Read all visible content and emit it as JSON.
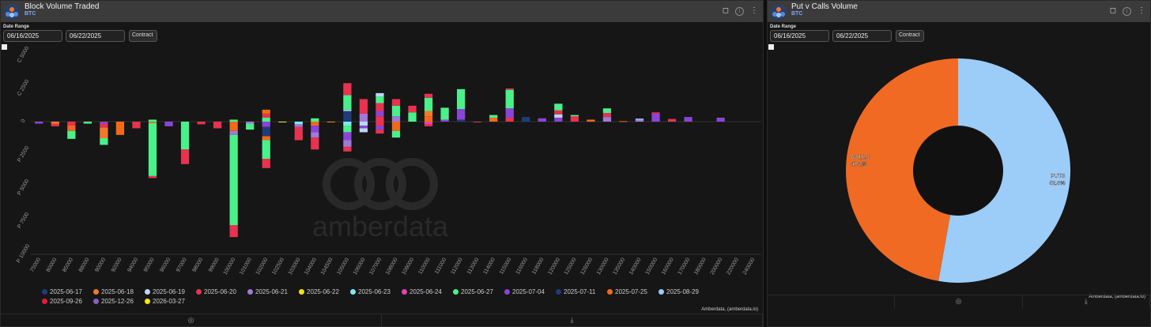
{
  "left_panel": {
    "title": "Block Volume Traded",
    "subtitle": "BTC",
    "date_range_label": "Date Range",
    "date_from": "06/16/2025",
    "date_to": "06/22/2025",
    "contract_button": "Contract",
    "credit": "Amberdata, (amberdata.io)",
    "watermark": "amberdata"
  },
  "right_panel": {
    "title": "Put v Calls Volume",
    "subtitle": "BTC",
    "date_range_label": "Date Range",
    "date_from": "06/16/2025",
    "date_to": "06/22/2025",
    "contract_button": "Contract",
    "credit": "Amberdata, (amberdata.io)"
  },
  "colors": {
    "2025-06-17": "#1f3b7a",
    "2025-06-18": "#f07a2a",
    "2025-06-19": "#bcd6f5",
    "2025-06-20": "#e8324f",
    "2025-06-21": "#a07ad8",
    "2025-06-22": "#f2e01a",
    "2025-06-23": "#7fe8f0",
    "2025-06-24": "#e840b4",
    "2025-06-27": "#4af08a",
    "2025-07-04": "#8a44d6",
    "2025-07-11": "#1f3b7a",
    "2025-07-25": "#f06a1a",
    "2025-08-29": "#9cc9f5",
    "2025-09-26": "#e8193a",
    "2025-12-26": "#8a5cc8",
    "2026-03-27": "#f2ea0a"
  },
  "chart_data": [
    {
      "type": "bar",
      "stacked": true,
      "title": "Block Volume Traded",
      "categories": [
        "75000",
        "80000",
        "85000",
        "88000",
        "90000",
        "92000",
        "94000",
        "95000",
        "96000",
        "97000",
        "98000",
        "99000",
        "100000",
        "101000",
        "102000",
        "102500",
        "103000",
        "104000",
        "104500",
        "105000",
        "106000",
        "107000",
        "108000",
        "109000",
        "110000",
        "111000",
        "112000",
        "113000",
        "114000",
        "115000",
        "116000",
        "118000",
        "120000",
        "125000",
        "126000",
        "130000",
        "135000",
        "140000",
        "150000",
        "160000",
        "170000",
        "180000",
        "200000",
        "220000",
        "240000"
      ],
      "y_tick_labels": [
        "C 5000",
        "C 2500",
        "0",
        "P 2500",
        "P 5000",
        "P 7500",
        "P 10000"
      ],
      "ylim": [
        -10000,
        5000
      ],
      "legend": [
        "2025-06-17",
        "2025-06-18",
        "2025-06-19",
        "2025-06-20",
        "2025-06-21",
        "2025-06-22",
        "2025-06-23",
        "2025-06-24",
        "2025-06-27",
        "2025-07-04",
        "2025-07-11",
        "2025-07-25",
        "2025-08-29",
        "2025-09-26",
        "2025-12-26",
        "2026-03-27"
      ],
      "bars": [
        {
          "cat": "75000",
          "stacks": [
            [
              "2025-07-04",
              -150
            ]
          ]
        },
        {
          "cat": "80000",
          "stacks": [
            [
              "2025-06-18",
              -150
            ],
            [
              "2025-06-20",
              -200
            ]
          ]
        },
        {
          "cat": "85000",
          "stacks": [
            [
              "2025-06-20",
              -300
            ],
            [
              "2025-07-25",
              -400
            ],
            [
              "2025-06-27",
              -600
            ]
          ]
        },
        {
          "cat": "88000",
          "stacks": [
            [
              "2025-06-27",
              -150
            ]
          ]
        },
        {
          "cat": "90000",
          "stacks": [
            [
              "2025-07-04",
              -150
            ],
            [
              "2025-06-20",
              -300
            ],
            [
              "2025-06-18",
              -800
            ],
            [
              "2025-06-27",
              -500
            ]
          ]
        },
        {
          "cat": "92000",
          "stacks": [
            [
              "2025-07-25",
              -1000
            ]
          ]
        },
        {
          "cat": "94000",
          "stacks": [
            [
              "2025-06-20",
              -500
            ]
          ]
        },
        {
          "cat": "95000",
          "stacks": [
            [
              "2025-06-27",
              150
            ],
            [
              "2025-07-25",
              -100
            ],
            [
              "2025-06-27",
              -4000
            ],
            [
              "2025-06-20",
              -150
            ]
          ]
        },
        {
          "cat": "96000",
          "stacks": [
            [
              "2025-07-04",
              -350
            ]
          ]
        },
        {
          "cat": "97000",
          "stacks": [
            [
              "2025-06-27",
              -2100
            ],
            [
              "2025-06-20",
              -1100
            ]
          ]
        },
        {
          "cat": "98000",
          "stacks": [
            [
              "2025-06-20",
              -200
            ]
          ]
        },
        {
          "cat": "99000",
          "stacks": [
            [
              "2025-06-20",
              -500
            ]
          ]
        },
        {
          "cat": "100000",
          "stacks": [
            [
              "2025-06-27",
              150
            ],
            [
              "2025-07-25",
              -700
            ],
            [
              "2025-06-21",
              -300
            ],
            [
              "2025-06-27",
              -6800
            ],
            [
              "2025-06-20",
              -900
            ]
          ]
        },
        {
          "cat": "101000",
          "stacks": [
            [
              "2025-06-21",
              -150
            ],
            [
              "2025-06-27",
              -450
            ]
          ]
        },
        {
          "cat": "102000",
          "stacks": [
            [
              "2025-06-27",
              300
            ],
            [
              "2025-06-20",
              300
            ],
            [
              "2025-07-25",
              300
            ],
            [
              "2025-07-04",
              -400
            ],
            [
              "2025-06-17",
              -700
            ],
            [
              "2025-07-25",
              -300
            ],
            [
              "2025-06-27",
              -1400
            ],
            [
              "2025-06-20",
              -700
            ]
          ]
        },
        {
          "cat": "102500",
          "stacks": [
            [
              "2025-06-22",
              -60
            ]
          ]
        },
        {
          "cat": "103000",
          "stacks": [
            [
              "2025-06-23",
              -200
            ],
            [
              "2025-06-21",
              -200
            ],
            [
              "2025-06-20",
              -1000
            ]
          ]
        },
        {
          "cat": "104000",
          "stacks": [
            [
              "2025-06-27",
              250
            ],
            [
              "2025-07-25",
              -300
            ],
            [
              "2025-07-04",
              -500
            ],
            [
              "2025-06-21",
              -400
            ],
            [
              "2025-06-20",
              -900
            ]
          ]
        },
        {
          "cat": "104500",
          "stacks": [
            [
              "2025-06-18",
              -60
            ]
          ]
        },
        {
          "cat": "105000",
          "stacks": [
            [
              "2025-06-17",
              800
            ],
            [
              "2025-06-19",
              100
            ],
            [
              "2025-06-27",
              1100
            ],
            [
              "2025-06-20",
              900
            ],
            [
              "2025-06-23",
              -300
            ],
            [
              "2025-06-27",
              -500
            ],
            [
              "2025-07-04",
              -600
            ],
            [
              "2025-06-21",
              -500
            ],
            [
              "2025-06-20",
              -350
            ]
          ]
        },
        {
          "cat": "106000",
          "stacks": [
            [
              "2025-06-21",
              600
            ],
            [
              "2025-06-20",
              1100
            ],
            [
              "2025-06-19",
              -300
            ],
            [
              "2025-07-04",
              -200
            ],
            [
              "2025-06-19",
              -300
            ]
          ]
        },
        {
          "cat": "107000",
          "stacks": [
            [
              "2025-06-20",
              400
            ],
            [
              "2025-07-04",
              400
            ],
            [
              "2025-06-20",
              600
            ],
            [
              "2025-06-27",
              500
            ],
            [
              "2025-06-19",
              250
            ],
            [
              "2025-06-20",
              -300
            ],
            [
              "2025-07-04",
              -300
            ],
            [
              "2025-06-20",
              -300
            ]
          ]
        },
        {
          "cat": "108000",
          "stacks": [
            [
              "2025-06-21",
              400
            ],
            [
              "2025-06-27",
              800
            ],
            [
              "2025-06-20",
              500
            ],
            [
              "2025-07-25",
              -700
            ],
            [
              "2025-06-27",
              -500
            ]
          ]
        },
        {
          "cat": "109000",
          "stacks": [
            [
              "2025-06-27",
              700
            ],
            [
              "2025-06-20",
              500
            ]
          ]
        },
        {
          "cat": "110000",
          "stacks": [
            [
              "2025-07-25",
              400
            ],
            [
              "2025-06-18",
              400
            ],
            [
              "2025-06-27",
              1000
            ],
            [
              "2025-06-20",
              300
            ],
            [
              "2025-06-24",
              -200
            ],
            [
              "2025-06-20",
              -150
            ]
          ]
        },
        {
          "cat": "111000",
          "stacks": [
            [
              "2025-07-04",
              150
            ],
            [
              "2025-06-27",
              900
            ]
          ]
        },
        {
          "cat": "112000",
          "stacks": [
            [
              "2025-06-17",
              150
            ],
            [
              "2025-07-04",
              800
            ],
            [
              "2025-06-27",
              1500
            ]
          ]
        },
        {
          "cat": "113000",
          "stacks": [
            [
              "2025-06-20",
              -40
            ]
          ]
        },
        {
          "cat": "114000",
          "stacks": [
            [
              "2025-07-25",
              300
            ],
            [
              "2025-06-27",
              200
            ]
          ]
        },
        {
          "cat": "115000",
          "stacks": [
            [
              "2025-06-20",
              300
            ],
            [
              "2025-07-04",
              700
            ],
            [
              "2025-06-27",
              1400
            ],
            [
              "2025-06-20",
              100
            ]
          ]
        },
        {
          "cat": "116000",
          "stacks": [
            [
              "2025-06-17",
              350
            ]
          ]
        },
        {
          "cat": "118000",
          "stacks": [
            [
              "2025-07-04",
              250
            ]
          ]
        },
        {
          "cat": "120000",
          "stacks": [
            [
              "2025-07-04",
              300
            ],
            [
              "2025-06-19",
              250
            ],
            [
              "2025-06-20",
              300
            ],
            [
              "2025-06-27",
              500
            ]
          ]
        },
        {
          "cat": "125000",
          "stacks": [
            [
              "2025-06-20",
              400
            ],
            [
              "2025-06-27",
              100
            ]
          ]
        },
        {
          "cat": "126000",
          "stacks": [
            [
              "2025-07-25",
              150
            ]
          ]
        },
        {
          "cat": "130000",
          "stacks": [
            [
              "2025-06-21",
              350
            ],
            [
              "2025-06-20",
              300
            ],
            [
              "2025-06-27",
              350
            ]
          ]
        },
        {
          "cat": "135000",
          "stacks": [
            [
              "2025-07-25",
              40
            ]
          ]
        },
        {
          "cat": "140000",
          "stacks": [
            [
              "2025-06-21",
              150
            ],
            [
              "2025-08-29",
              80
            ]
          ]
        },
        {
          "cat": "150000",
          "stacks": [
            [
              "2025-07-04",
              600
            ],
            [
              "2025-06-20",
              100
            ]
          ]
        },
        {
          "cat": "160000",
          "stacks": [
            [
              "2025-06-20",
              200
            ]
          ]
        },
        {
          "cat": "170000",
          "stacks": [
            [
              "2025-07-04",
              350
            ]
          ]
        },
        {
          "cat": "180000",
          "stacks": []
        },
        {
          "cat": "200000",
          "stacks": [
            [
              "2025-07-04",
              300
            ]
          ]
        },
        {
          "cat": "220000",
          "stacks": []
        },
        {
          "cat": "240000",
          "stacks": []
        }
      ]
    },
    {
      "type": "pie",
      "donut": true,
      "title": "Put v Calls Volume",
      "slices": [
        {
          "label": "PUTS",
          "value": 52.8,
          "display": "52.8%",
          "color": "#9cccf8"
        },
        {
          "label": "CALLS",
          "value": 47.2,
          "display": "47.2%",
          "color": "#f06a23"
        }
      ]
    }
  ]
}
